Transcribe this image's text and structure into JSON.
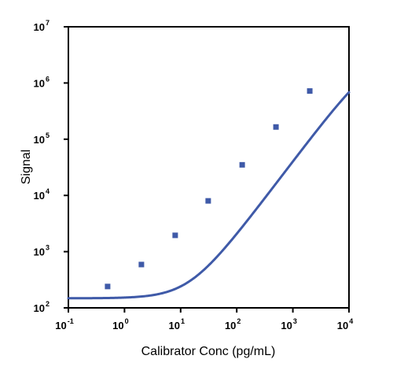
{
  "chart_data": {
    "type": "scatter",
    "title": "",
    "xlabel": "Calibrator Conc (pg/mL)",
    "ylabel": "Signal",
    "x_scale": "log",
    "y_scale": "log",
    "xlim": [
      0.1,
      10000
    ],
    "ylim": [
      100,
      10000000
    ],
    "grid": false,
    "legend": "none",
    "x_ticks": [
      {
        "value": 0.1,
        "base": "10",
        "exp": "-1"
      },
      {
        "value": 1,
        "base": "10",
        "exp": "0"
      },
      {
        "value": 10,
        "base": "10",
        "exp": "1"
      },
      {
        "value": 100,
        "base": "10",
        "exp": "2"
      },
      {
        "value": 1000,
        "base": "10",
        "exp": "3"
      },
      {
        "value": 10000,
        "base": "10",
        "exp": "4"
      }
    ],
    "y_ticks": [
      {
        "value": 100,
        "base": "10",
        "exp": "2"
      },
      {
        "value": 1000,
        "base": "10",
        "exp": "3"
      },
      {
        "value": 10000,
        "base": "10",
        "exp": "4"
      },
      {
        "value": 100000,
        "base": "10",
        "exp": "5"
      },
      {
        "value": 1000000,
        "base": "10",
        "exp": "6"
      },
      {
        "value": 10000000,
        "base": "10",
        "exp": "7"
      }
    ],
    "series": [
      {
        "points": [
          {
            "x": 0.5,
            "y": 240
          },
          {
            "x": 2,
            "y": 590
          },
          {
            "x": 8,
            "y": 1950
          },
          {
            "x": 31,
            "y": 8000
          },
          {
            "x": 125,
            "y": 35000
          },
          {
            "x": 500,
            "y": 165000
          },
          {
            "x": 2000,
            "y": 720000
          }
        ],
        "fit_curve": "four-parameter logistic",
        "color": "#3f5aa8"
      }
    ]
  }
}
